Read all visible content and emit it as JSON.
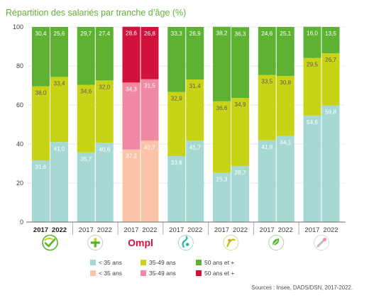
{
  "chart_data": {
    "type": "bar",
    "stacked": true,
    "title": "Répartition des salariés par tranche d’âge (%)",
    "accent_color": "#62b13a",
    "ylim": [
      0,
      100
    ],
    "yticks": [
      0,
      20,
      40,
      60,
      80,
      100
    ],
    "grid": true,
    "legend_position": "bottom",
    "series": [
      "< 35 ans",
      "35-49 ans",
      "50 ans et +"
    ],
    "palettes": [
      [
        "#a6d9d4",
        "#c8d316",
        "#5db232"
      ],
      [
        "#f9c4a7",
        "#ef8aa2",
        "#d1123d"
      ]
    ],
    "groups": [
      {
        "icon": "hands-check-icon",
        "highlight": true,
        "palette": 0,
        "bars": [
          {
            "x": "2017",
            "values": [
              31.6,
              38.0,
              30.4
            ]
          },
          {
            "x": "2022",
            "values": [
              41.0,
              33.4,
              25.6
            ]
          }
        ]
      },
      {
        "icon": "plus-icon",
        "palette": 0,
        "bars": [
          {
            "x": "2017",
            "values": [
              35.7,
              34.6,
              29.7
            ]
          },
          {
            "x": "2022",
            "values": [
              40.6,
              32.0,
              27.4
            ]
          }
        ]
      },
      {
        "icon": "ompl-logo",
        "logo_text": "Ompl",
        "palette": 1,
        "bars": [
          {
            "x": "2017",
            "values": [
              37.2,
              34.3,
              28.6
            ]
          },
          {
            "x": "2022",
            "values": [
              41.7,
              31.5,
              26.8
            ]
          }
        ]
      },
      {
        "icon": "teal-figure-icon",
        "palette": 0,
        "bars": [
          {
            "x": "2017",
            "values": [
              33.8,
              32.9,
              33.3
            ]
          },
          {
            "x": "2022",
            "values": [
              41.7,
              31.4,
              26.9
            ]
          }
        ]
      },
      {
        "icon": "lime-figure-icon",
        "palette": 0,
        "bars": [
          {
            "x": "2017",
            "values": [
              25.3,
              36.6,
              38.2
            ]
          },
          {
            "x": "2022",
            "values": [
              28.7,
              34.9,
              36.3
            ]
          }
        ]
      },
      {
        "icon": "green-leaf-icon",
        "palette": 0,
        "bars": [
          {
            "x": "2017",
            "values": [
              41.9,
              33.5,
              24.6
            ]
          },
          {
            "x": "2022",
            "values": [
              44.1,
              30.8,
              25.1
            ]
          }
        ]
      },
      {
        "icon": "pink-drop-icon",
        "palette": 0,
        "bars": [
          {
            "x": "2017",
            "values": [
              54.6,
              29.5,
              16.0
            ]
          },
          {
            "x": "2022",
            "values": [
              59.8,
              26.7,
              13.5
            ]
          }
        ]
      }
    ],
    "source": "Sources : Insee, DADS/DSN, 2017-2022."
  }
}
